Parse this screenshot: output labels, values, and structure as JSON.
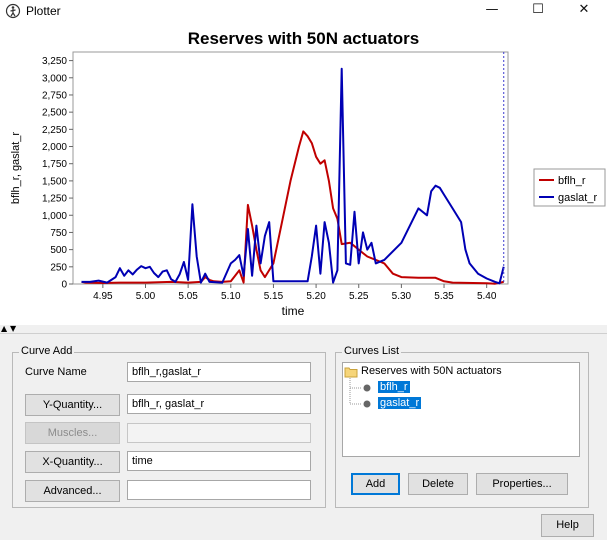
{
  "window": {
    "title": "Plotter",
    "minimize": "—",
    "maximize": "☐",
    "close": "✕"
  },
  "chart": {
    "title": "Reserves with 50N  actuators"
  },
  "chart_data": {
    "type": "line",
    "title": "Reserves with 50N  actuators",
    "xlabel": "time",
    "ylabel": "bflh_r, gaslat_r",
    "xlim": [
      4.915,
      5.425
    ],
    "ylim": [
      0,
      3375
    ],
    "xticks": [
      4.95,
      5.0,
      5.05,
      5.1,
      5.15,
      5.2,
      5.25,
      5.3,
      5.35,
      5.4
    ],
    "xtick_labels": [
      "4.95",
      "5.00",
      "5.05",
      "5.10",
      "5.15",
      "5.20",
      "5.25",
      "5.30",
      "5.35",
      "5.40"
    ],
    "yticks": [
      0,
      250,
      500,
      750,
      1000,
      1250,
      1500,
      1750,
      2000,
      2250,
      2500,
      2750,
      3000,
      3250
    ],
    "ytick_labels": [
      "0",
      "250",
      "500",
      "750",
      "1,000",
      "1,250",
      "1,500",
      "1,750",
      "2,000",
      "2,250",
      "2,500",
      "2,750",
      "3,000",
      "3,250"
    ],
    "grid": false,
    "legend": "right",
    "marker_x": 5.42,
    "series": [
      {
        "name": "bflh_r",
        "color": "#c00000",
        "points": [
          [
            4.925,
            30
          ],
          [
            4.93,
            20
          ],
          [
            4.95,
            15
          ],
          [
            4.97,
            20
          ],
          [
            5.0,
            20
          ],
          [
            5.03,
            30
          ],
          [
            5.05,
            20
          ],
          [
            5.065,
            30
          ],
          [
            5.07,
            100
          ],
          [
            5.075,
            60
          ],
          [
            5.08,
            40
          ],
          [
            5.09,
            30
          ],
          [
            5.1,
            40
          ],
          [
            5.105,
            120
          ],
          [
            5.11,
            200
          ],
          [
            5.115,
            20
          ],
          [
            5.12,
            1150
          ],
          [
            5.125,
            850
          ],
          [
            5.13,
            500
          ],
          [
            5.135,
            200
          ],
          [
            5.14,
            100
          ],
          [
            5.15,
            300
          ],
          [
            5.16,
            900
          ],
          [
            5.17,
            1500
          ],
          [
            5.18,
            2000
          ],
          [
            5.185,
            2220
          ],
          [
            5.19,
            2150
          ],
          [
            5.195,
            2050
          ],
          [
            5.2,
            1850
          ],
          [
            5.205,
            1750
          ],
          [
            5.21,
            1800
          ],
          [
            5.215,
            1500
          ],
          [
            5.22,
            1100
          ],
          [
            5.225,
            950
          ],
          [
            5.23,
            580
          ],
          [
            5.24,
            600
          ],
          [
            5.245,
            550
          ],
          [
            5.25,
            500
          ],
          [
            5.255,
            450
          ],
          [
            5.26,
            400
          ],
          [
            5.27,
            350
          ],
          [
            5.28,
            300
          ],
          [
            5.29,
            150
          ],
          [
            5.3,
            100
          ],
          [
            5.32,
            90
          ],
          [
            5.34,
            90
          ],
          [
            5.35,
            40
          ],
          [
            5.36,
            20
          ],
          [
            5.4,
            10
          ],
          [
            5.41,
            5
          ],
          [
            5.42,
            30
          ]
        ]
      },
      {
        "name": "gaslat_r",
        "color": "#0000b4",
        "points": [
          [
            4.925,
            30
          ],
          [
            4.935,
            30
          ],
          [
            4.945,
            50
          ],
          [
            4.955,
            20
          ],
          [
            4.965,
            100
          ],
          [
            4.97,
            230
          ],
          [
            4.975,
            120
          ],
          [
            4.98,
            200
          ],
          [
            4.985,
            140
          ],
          [
            4.99,
            210
          ],
          [
            4.995,
            260
          ],
          [
            5.0,
            230
          ],
          [
            5.005,
            250
          ],
          [
            5.01,
            160
          ],
          [
            5.015,
            100
          ],
          [
            5.02,
            180
          ],
          [
            5.025,
            200
          ],
          [
            5.03,
            70
          ],
          [
            5.035,
            30
          ],
          [
            5.04,
            140
          ],
          [
            5.045,
            320
          ],
          [
            5.05,
            60
          ],
          [
            5.055,
            1160
          ],
          [
            5.06,
            400
          ],
          [
            5.065,
            20
          ],
          [
            5.07,
            150
          ],
          [
            5.075,
            30
          ],
          [
            5.09,
            20
          ],
          [
            5.1,
            300
          ],
          [
            5.105,
            350
          ],
          [
            5.11,
            420
          ],
          [
            5.115,
            120
          ],
          [
            5.12,
            800
          ],
          [
            5.125,
            120
          ],
          [
            5.13,
            850
          ],
          [
            5.135,
            300
          ],
          [
            5.14,
            700
          ],
          [
            5.145,
            900
          ],
          [
            5.15,
            40
          ],
          [
            5.19,
            40
          ],
          [
            5.195,
            400
          ],
          [
            5.2,
            850
          ],
          [
            5.205,
            150
          ],
          [
            5.21,
            900
          ],
          [
            5.215,
            600
          ],
          [
            5.22,
            20
          ],
          [
            5.225,
            200
          ],
          [
            5.23,
            3130
          ],
          [
            5.235,
            300
          ],
          [
            5.24,
            280
          ],
          [
            5.245,
            1050
          ],
          [
            5.25,
            300
          ],
          [
            5.255,
            750
          ],
          [
            5.26,
            500
          ],
          [
            5.265,
            600
          ],
          [
            5.27,
            300
          ],
          [
            5.28,
            350
          ],
          [
            5.3,
            600
          ],
          [
            5.32,
            1100
          ],
          [
            5.33,
            1000
          ],
          [
            5.335,
            1350
          ],
          [
            5.34,
            1430
          ],
          [
            5.345,
            1400
          ],
          [
            5.35,
            1300
          ],
          [
            5.36,
            1100
          ],
          [
            5.37,
            900
          ],
          [
            5.375,
            500
          ],
          [
            5.38,
            300
          ],
          [
            5.39,
            150
          ],
          [
            5.4,
            80
          ],
          [
            5.41,
            30
          ],
          [
            5.415,
            10
          ],
          [
            5.42,
            250
          ]
        ]
      }
    ]
  },
  "curve_add": {
    "group_title": "Curve Add",
    "curve_name_label": "Curve Name",
    "curve_name_value": "bflh_r,gaslat_r",
    "y_quantity_button": "Y-Quantity...",
    "y_quantity_value": "bflh_r, gaslat_r",
    "muscles_button": "Muscles...",
    "muscles_value": "",
    "x_quantity_button": "X-Quantity...",
    "x_quantity_value": "time",
    "advanced_button": "Advanced...",
    "advanced_value": ""
  },
  "curves_list": {
    "group_title": "Curves List",
    "root": "Reserves with 50N  actuators",
    "items": [
      "bflh_r",
      "gaslat_r"
    ],
    "add_button": "Add",
    "delete_button": "Delete",
    "properties_button": "Properties..."
  },
  "help_button": "Help",
  "splitter": {
    "up": "▲",
    "down": "▼"
  }
}
